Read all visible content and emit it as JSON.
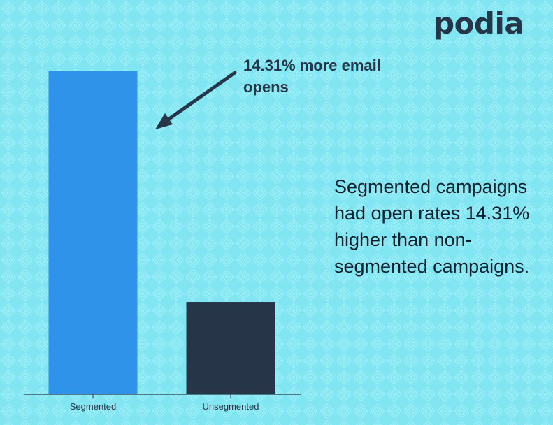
{
  "brand": {
    "logo_text": "podia"
  },
  "colors": {
    "background": "#82e6f2",
    "pattern": "#a4f0f8",
    "segmented_bar": "#2f93e9",
    "unsegmented_bar": "#263548",
    "text_dark": "#263548"
  },
  "annotation": {
    "text": "14.31% more email opens"
  },
  "description": {
    "text": "Segmented campaigns had open rates 14.31% higher than non-segmented campaigns."
  },
  "chart_data": {
    "type": "bar",
    "title": "",
    "xlabel": "",
    "ylabel": "",
    "categories": [
      "Segmented",
      "Unsegmented"
    ],
    "values": [
      100,
      28.5
    ],
    "ylim": [
      0,
      100
    ],
    "grid": false,
    "legend": "none",
    "bar_colors": [
      "#2f93e9",
      "#263548"
    ]
  }
}
